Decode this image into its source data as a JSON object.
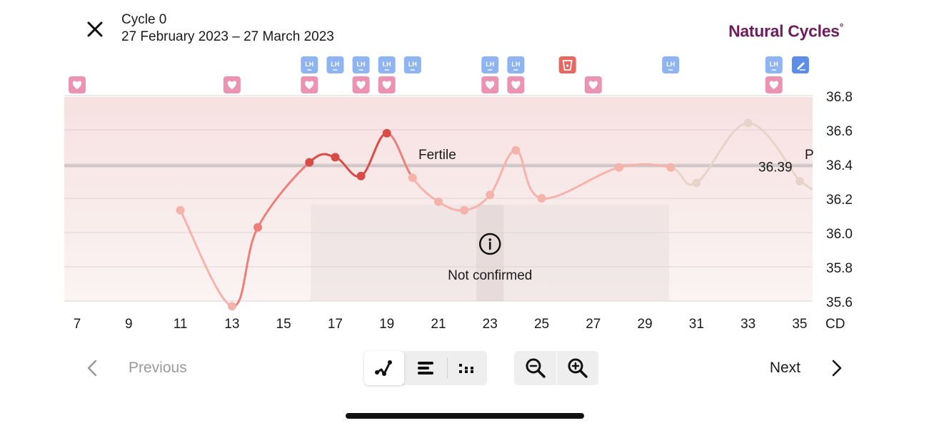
{
  "header": {
    "cycle_title": "Cycle 0",
    "cycle_dates": "27 February 2023 – 27 March 2023",
    "brand": "Natural Cycles",
    "brand_mark": "°",
    "close_icon": "close-icon"
  },
  "chart_data": {
    "type": "line",
    "xlabel": "CD",
    "ylim": [
      35.6,
      36.8
    ],
    "x_ticks": [
      7,
      9,
      11,
      13,
      15,
      17,
      19,
      21,
      23,
      25,
      27,
      29,
      31,
      33,
      35
    ],
    "y_ticks": [
      35.6,
      35.8,
      36.0,
      36.2,
      36.4,
      36.6,
      36.8
    ],
    "y_tick_labels": [
      "35.6",
      "35.8",
      "36.0",
      "36.2",
      "36.4",
      "36.6",
      "36.8"
    ],
    "coverline": {
      "value": 36.39,
      "label": "36.39"
    },
    "fertile_label": "Fertile",
    "fertile_range": [
      16,
      19
    ],
    "phase_label_fragment": "P",
    "not_confirmed": {
      "label": "Not confirmed",
      "icon": "info-icon",
      "range": [
        16.5,
        29.5
      ],
      "emphasis_range": [
        22.5,
        23.5
      ]
    },
    "series": [
      {
        "points": [
          {
            "x": 11,
            "y": 36.13,
            "phase": "light"
          },
          {
            "x": 13,
            "y": 35.57,
            "phase": "light"
          },
          {
            "x": 14,
            "y": 36.03,
            "phase": "medium"
          },
          {
            "x": 16,
            "y": 36.41,
            "phase": "strong"
          },
          {
            "x": 17,
            "y": 36.44,
            "phase": "strong"
          },
          {
            "x": 18,
            "y": 36.33,
            "phase": "strong"
          },
          {
            "x": 19,
            "y": 36.58,
            "phase": "strong"
          },
          {
            "x": 20,
            "y": 36.32,
            "phase": "light"
          },
          {
            "x": 21,
            "y": 36.18,
            "phase": "light"
          },
          {
            "x": 22,
            "y": 36.13,
            "phase": "light"
          },
          {
            "x": 23,
            "y": 36.22,
            "phase": "light"
          },
          {
            "x": 24,
            "y": 36.48,
            "phase": "light"
          },
          {
            "x": 25,
            "y": 36.2,
            "phase": "light"
          },
          {
            "x": 28,
            "y": 36.38,
            "phase": "light"
          },
          {
            "x": 30,
            "y": 36.38,
            "phase": "light"
          },
          {
            "x": 31,
            "y": 36.29,
            "phase": "beige"
          },
          {
            "x": 33,
            "y": 36.64,
            "phase": "beige"
          },
          {
            "x": 35,
            "y": 36.3,
            "phase": "beige"
          }
        ]
      }
    ],
    "lh_tests": [
      16,
      17,
      18,
      19,
      20,
      23,
      24,
      30,
      34
    ],
    "pregnancy_test": [
      26
    ],
    "intercourse": [
      7,
      13,
      16,
      18,
      19,
      23,
      24,
      27,
      34
    ],
    "note": [
      35
    ],
    "colors": {
      "light": "#f5b3ac",
      "medium": "#ec7f77",
      "strong": "#d84c47",
      "beige": "#e6d4cb",
      "lh_marker": "#8fb4f2",
      "heart_marker": "#ec93b4",
      "test_marker": "#e8675f",
      "note_marker": "#5d8de8"
    }
  },
  "view_controls": {
    "line_view_icon": "line-graph-icon",
    "list_view_icon": "bar-list-icon",
    "dots_view_icon": "dot-grid-icon",
    "zoom_out_icon": "zoom-out-icon",
    "zoom_in_icon": "zoom-in-icon"
  },
  "nav": {
    "previous_label": "Previous",
    "next_label": "Next"
  }
}
